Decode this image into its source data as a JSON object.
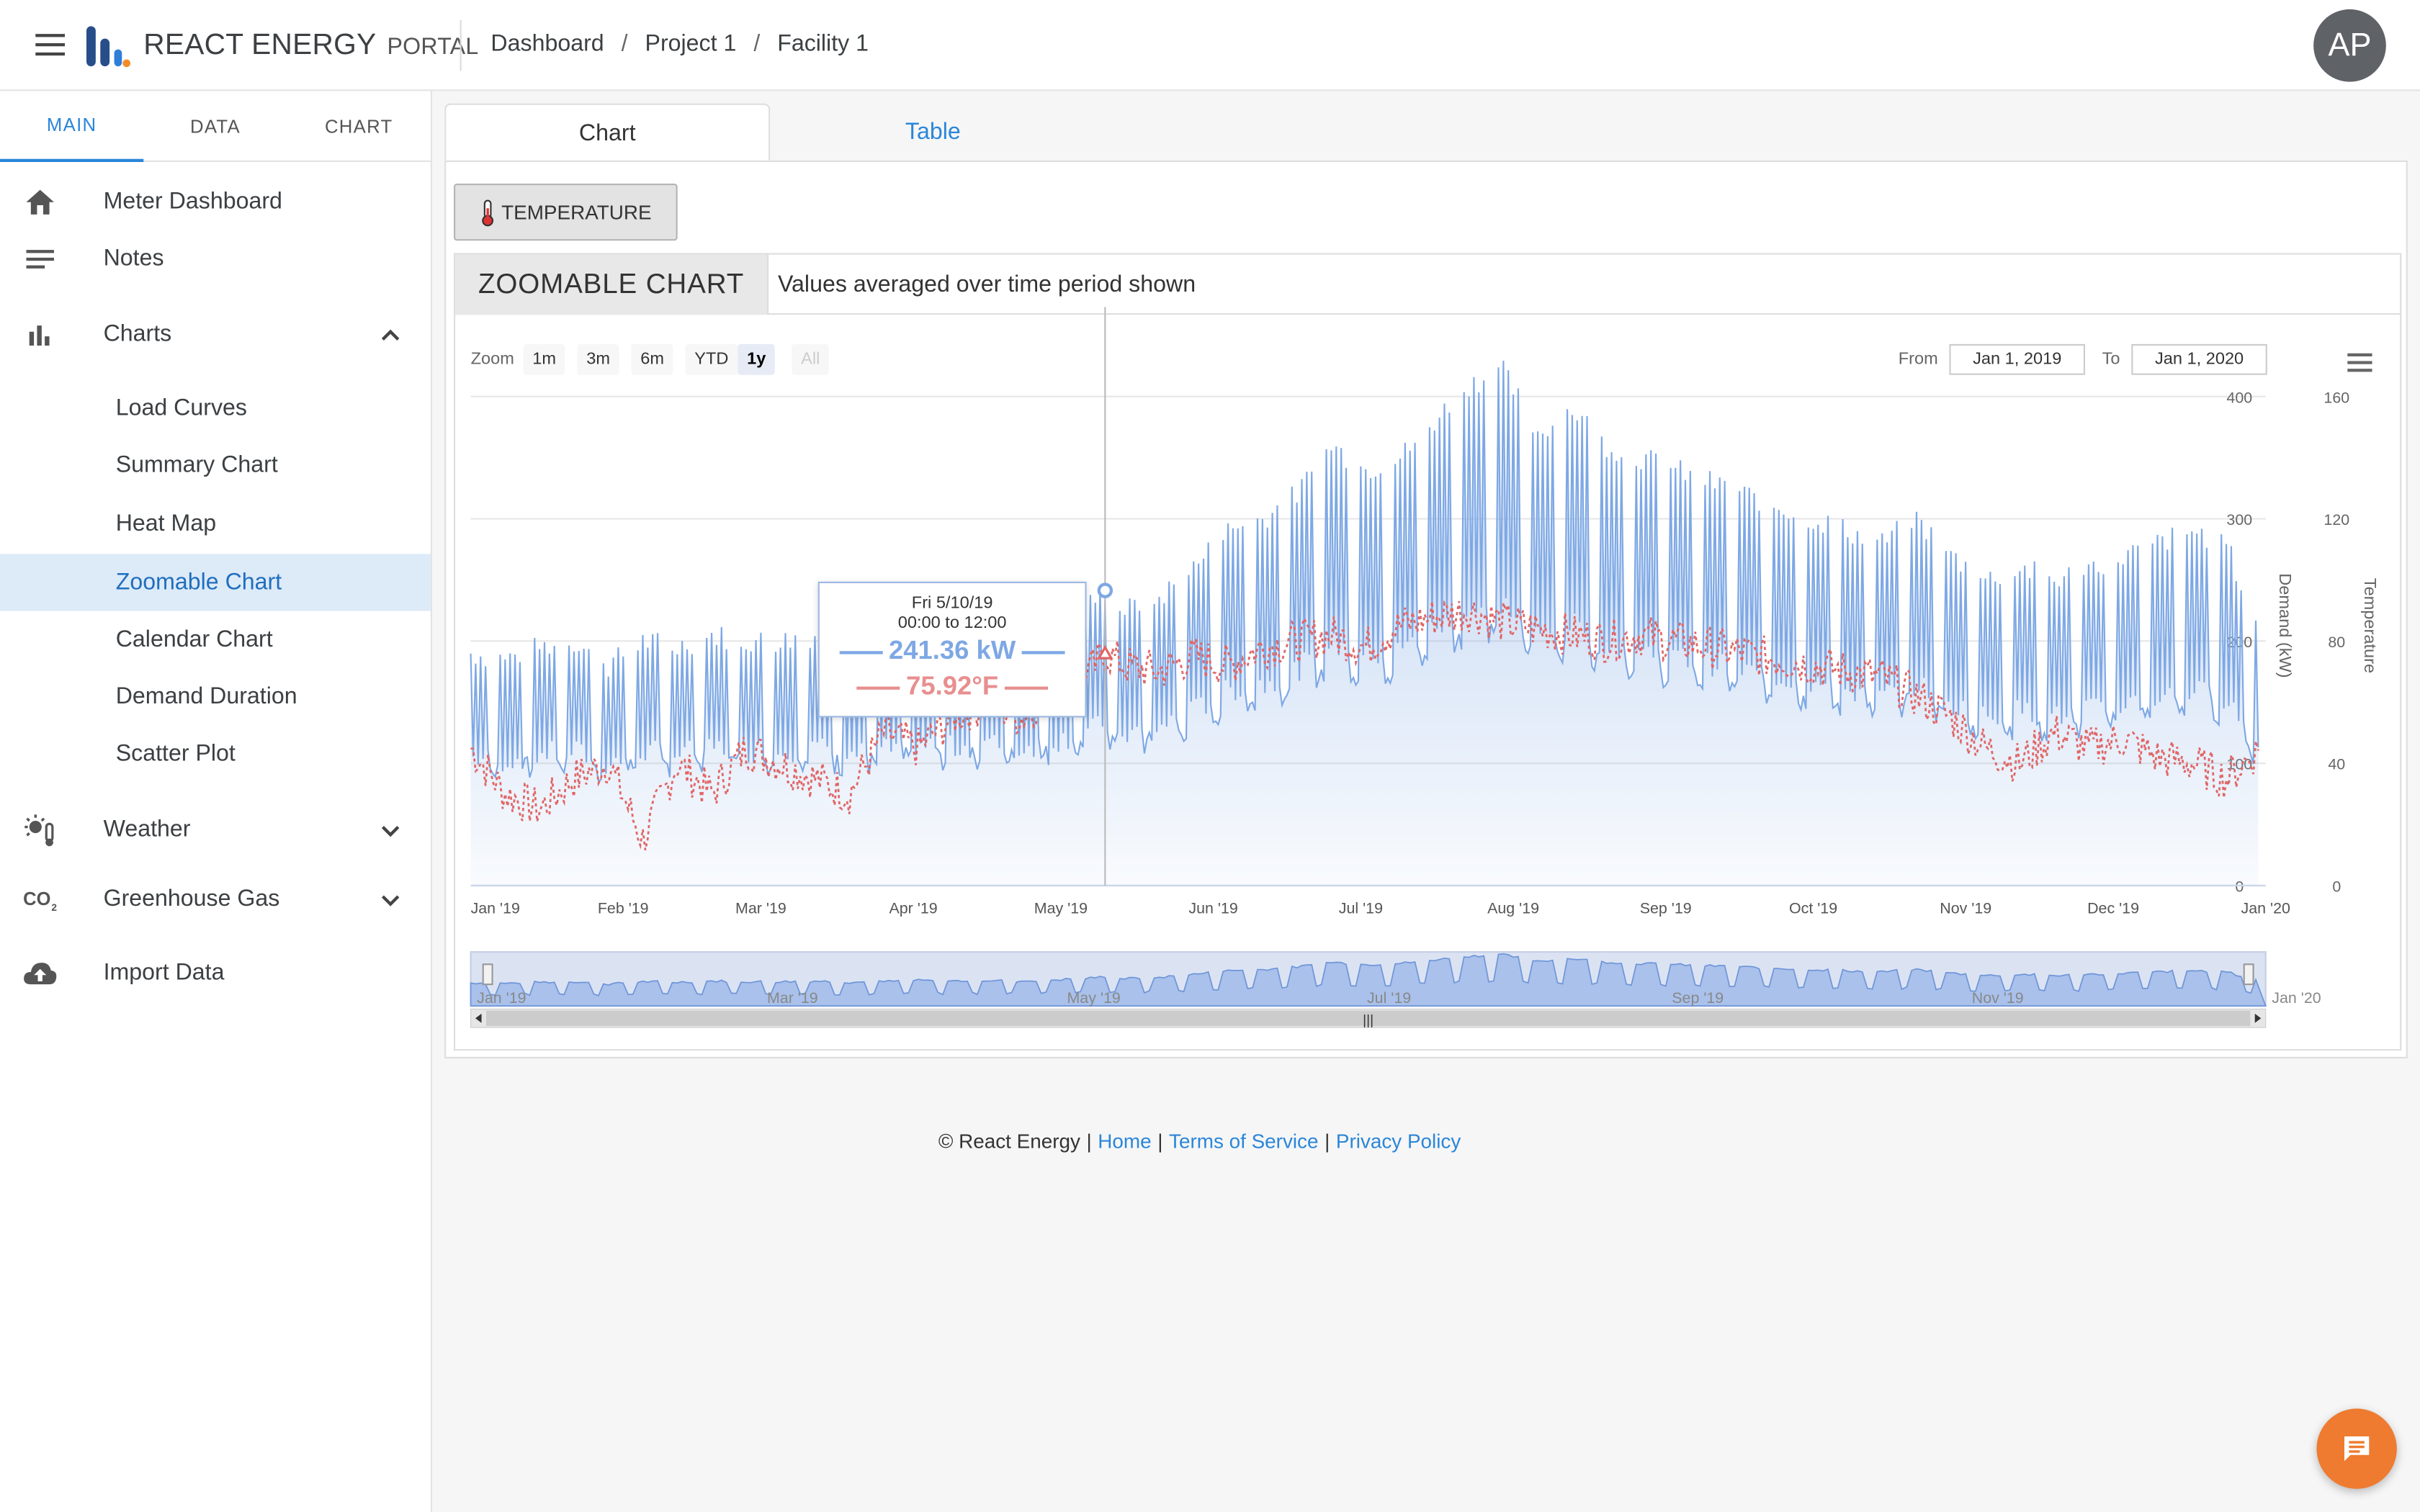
{
  "header": {
    "app_name": "REACT ENERGY",
    "app_suffix": "PORTAL",
    "breadcrumb": [
      "Dashboard",
      "Project 1",
      "Facility 1"
    ],
    "breadcrumb_sep": "/",
    "avatar_initials": "AP",
    "menu_icon": "hamburger-icon"
  },
  "sidebar": {
    "tabs": [
      "MAIN",
      "DATA",
      "CHART"
    ],
    "active_tab": "MAIN",
    "items": [
      {
        "label": "Meter Dashboard",
        "icon": "home-icon"
      },
      {
        "label": "Notes",
        "icon": "notes-icon"
      },
      {
        "label": "Charts",
        "icon": "bar-chart-icon",
        "expanded": true
      },
      {
        "label": "Weather",
        "icon": "weather-icon",
        "expanded": false
      },
      {
        "label": "Greenhouse Gas",
        "icon": "co2-icon",
        "expanded": false
      },
      {
        "label": "Import Data",
        "icon": "cloud-upload-icon"
      }
    ],
    "chart_items": [
      "Load Curves",
      "Summary Chart",
      "Heat Map",
      "Zoomable Chart",
      "Calendar Chart",
      "Demand Duration",
      "Scatter Plot"
    ],
    "active_chart_item": "Zoomable Chart"
  },
  "content": {
    "tabs": [
      "Chart",
      "Table"
    ],
    "active_tab": "Chart",
    "temperature_button": "TEMPERATURE",
    "chart_title": "ZOOMABLE CHART",
    "chart_subtitle": "Values averaged over time period shown",
    "zoom_label": "Zoom",
    "zoom_buttons": [
      "1m",
      "3m",
      "6m",
      "YTD",
      "1y",
      "All"
    ],
    "zoom_selected": "1y",
    "from_label": "From",
    "from_value": "Jan 1, 2019",
    "to_label": "To",
    "to_value": "Jan 1, 2020"
  },
  "tooltip": {
    "date": "Fri 5/10/19",
    "range": "00:00 to 12:00",
    "demand": "241.36 kW",
    "temperature": "75.92°F"
  },
  "chart_data": {
    "type": "line",
    "title": "ZOOMABLE CHART",
    "subtitle": "Values averaged over time period shown",
    "x_range": [
      "2019-01-01",
      "2020-01-01"
    ],
    "x_tick_labels": [
      "Jan '19",
      "Feb '19",
      "Mar '19",
      "Apr '19",
      "May '19",
      "Jun '19",
      "Jul '19",
      "Aug '19",
      "Sep '19",
      "Oct '19",
      "Nov '19",
      "Dec '19",
      "Jan '20"
    ],
    "navigator_tick_labels": [
      "Jan '19",
      "Mar '19",
      "May '19",
      "Jul '19",
      "Sep '19",
      "Nov '19",
      "Jan '20"
    ],
    "y_axes": [
      {
        "label": "Demand (kW)",
        "ticks": [
          0,
          100,
          200,
          300,
          400
        ],
        "ylim": [
          0,
          400
        ]
      },
      {
        "label": "Temperature",
        "ticks": [
          0,
          40,
          80,
          120,
          160
        ],
        "ylim": [
          0,
          160
        ]
      }
    ],
    "series": [
      {
        "name": "Demand (kW)",
        "axis": 0,
        "color": "#7ea8e4",
        "style": "area",
        "points": [
          [
            "2019-01-01",
            190
          ],
          [
            "2019-01-08",
            185
          ],
          [
            "2019-01-15",
            195
          ],
          [
            "2019-01-22",
            200
          ],
          [
            "2019-01-29",
            180
          ],
          [
            "2019-02-05",
            200
          ],
          [
            "2019-02-12",
            195
          ],
          [
            "2019-02-19",
            205
          ],
          [
            "2019-02-26",
            200
          ],
          [
            "2019-03-05",
            200
          ],
          [
            "2019-03-12",
            205
          ],
          [
            "2019-03-19",
            195
          ],
          [
            "2019-03-26",
            200
          ],
          [
            "2019-04-02",
            210
          ],
          [
            "2019-04-09",
            205
          ],
          [
            "2019-04-16",
            210
          ],
          [
            "2019-04-23",
            205
          ],
          [
            "2019-04-30",
            215
          ],
          [
            "2019-05-07",
            230
          ],
          [
            "2019-05-10",
            241.36
          ],
          [
            "2019-05-14",
            225
          ],
          [
            "2019-05-21",
            235
          ],
          [
            "2019-05-28",
            260
          ],
          [
            "2019-06-04",
            290
          ],
          [
            "2019-06-11",
            300
          ],
          [
            "2019-06-18",
            320
          ],
          [
            "2019-06-25",
            360
          ],
          [
            "2019-07-02",
            340
          ],
          [
            "2019-07-09",
            350
          ],
          [
            "2019-07-16",
            380
          ],
          [
            "2019-07-23",
            410
          ],
          [
            "2019-07-30",
            420
          ],
          [
            "2019-08-06",
            370
          ],
          [
            "2019-08-13",
            390
          ],
          [
            "2019-08-20",
            360
          ],
          [
            "2019-08-27",
            350
          ],
          [
            "2019-09-03",
            340
          ],
          [
            "2019-09-10",
            330
          ],
          [
            "2019-09-17",
            320
          ],
          [
            "2019-09-24",
            310
          ],
          [
            "2019-10-01",
            300
          ],
          [
            "2019-10-08",
            290
          ],
          [
            "2019-10-15",
            280
          ],
          [
            "2019-10-22",
            300
          ],
          [
            "2019-10-29",
            270
          ],
          [
            "2019-11-05",
            250
          ],
          [
            "2019-11-12",
            260
          ],
          [
            "2019-11-19",
            250
          ],
          [
            "2019-11-26",
            260
          ],
          [
            "2019-12-03",
            270
          ],
          [
            "2019-12-10",
            280
          ],
          [
            "2019-12-17",
            290
          ],
          [
            "2019-12-24",
            280
          ],
          [
            "2019-12-31",
            200
          ]
        ]
      },
      {
        "name": "Temperature (°F)",
        "axis": 1,
        "color": "#e06666",
        "style": "dotted",
        "points": [
          [
            "2019-01-01",
            45
          ],
          [
            "2019-01-08",
            30
          ],
          [
            "2019-01-15",
            25
          ],
          [
            "2019-01-22",
            35
          ],
          [
            "2019-01-29",
            40
          ],
          [
            "2019-02-05",
            15
          ],
          [
            "2019-02-12",
            40
          ],
          [
            "2019-02-19",
            30
          ],
          [
            "2019-02-26",
            45
          ],
          [
            "2019-03-05",
            40
          ],
          [
            "2019-03-12",
            35
          ],
          [
            "2019-03-19",
            30
          ],
          [
            "2019-03-26",
            50
          ],
          [
            "2019-04-02",
            45
          ],
          [
            "2019-04-09",
            55
          ],
          [
            "2019-04-16",
            60
          ],
          [
            "2019-04-23",
            55
          ],
          [
            "2019-04-30",
            65
          ],
          [
            "2019-05-07",
            70
          ],
          [
            "2019-05-10",
            75.92
          ],
          [
            "2019-05-14",
            72
          ],
          [
            "2019-05-21",
            70
          ],
          [
            "2019-05-28",
            75
          ],
          [
            "2019-06-04",
            72
          ],
          [
            "2019-06-11",
            78
          ],
          [
            "2019-06-18",
            80
          ],
          [
            "2019-06-25",
            82
          ],
          [
            "2019-07-02",
            78
          ],
          [
            "2019-07-09",
            85
          ],
          [
            "2019-07-16",
            88
          ],
          [
            "2019-07-23",
            90
          ],
          [
            "2019-07-30",
            86
          ],
          [
            "2019-08-06",
            84
          ],
          [
            "2019-08-13",
            82
          ],
          [
            "2019-08-20",
            80
          ],
          [
            "2019-08-27",
            82
          ],
          [
            "2019-09-03",
            80
          ],
          [
            "2019-09-10",
            78
          ],
          [
            "2019-09-17",
            76
          ],
          [
            "2019-09-24",
            74
          ],
          [
            "2019-10-01",
            72
          ],
          [
            "2019-10-08",
            70
          ],
          [
            "2019-10-15",
            68
          ],
          [
            "2019-10-22",
            62
          ],
          [
            "2019-10-29",
            55
          ],
          [
            "2019-11-05",
            45
          ],
          [
            "2019-11-12",
            40
          ],
          [
            "2019-11-19",
            50
          ],
          [
            "2019-11-26",
            45
          ],
          [
            "2019-12-03",
            48
          ],
          [
            "2019-12-10",
            42
          ],
          [
            "2019-12-17",
            40
          ],
          [
            "2019-12-24",
            35
          ],
          [
            "2019-12-31",
            45
          ]
        ]
      }
    ],
    "crosshair_date": "2019-05-10",
    "grid": true,
    "legend": "none"
  },
  "footer": {
    "copyright": "© React Energy",
    "links": [
      "Home",
      "Terms of Service",
      "Privacy Policy"
    ],
    "separator": "|"
  },
  "fab_icon": "chat-icon"
}
